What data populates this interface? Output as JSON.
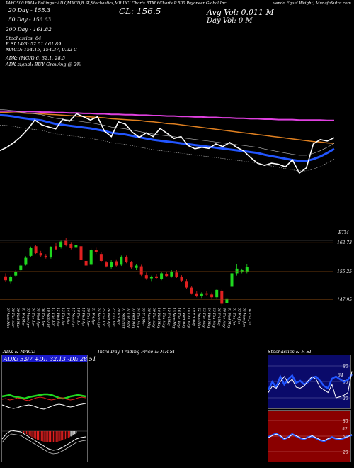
{
  "header": {
    "top_line": "PAYO500 EMAs Bollinger ADX,MACD,R SI,Stochastics,MR UCI Charts BTM 6Charts P 500 Payoneer Global Inc.",
    "top_line_right": "vendo Equal Weight) MunafaSutra.com",
    "ticker_alt": "PAYO",
    "cl_label": "CL: 156.5",
    "avg_vol_label": "Avg Vol: 0.011 M",
    "day_vol_label": "Day Vol: 0  M",
    "ema20": "20   Day  -  155.3",
    "ema50": "50   Day  -  156.63",
    "ema200": "200  Day  -  161.82",
    "stoch": "Stochastics: 64",
    "rsi": "R                 SI 14/3: 52.51 / 61.89",
    "macd": "MACD: 154.15,  154.37,   0.22   C",
    "adx": "ADX:                               (MGR) 6, 32.1, 28.5",
    "adx_signal": "ADX  signal:                                BUY Growing @ 2%"
  },
  "colors": {
    "ema20": "#2255ff",
    "ema50": "#e08020",
    "ema200": "#e040e0",
    "up": "#1fd81f",
    "down": "#e02020",
    "grid": "#8a4a10"
  },
  "price_axis": {
    "labels": [
      "162.73",
      "155.25",
      "147.95"
    ],
    "top_right": "BTM"
  },
  "dates": [
    "27 Mon Mar",
    "28 Tue Mar",
    "29 Wed Mar",
    "31 Fri Mar",
    "03 Mon Apr",
    "04 Tue Apr",
    "05 Wed Apr",
    "06 Thu Apr",
    "10 Mon Apr",
    "11 Tue Apr",
    "12 Wed Apr",
    "13 Thu Apr",
    "14 Fri Apr",
    "17 Mon Apr",
    "18 Tue Apr",
    "19 Wed Apr",
    "20 Thu Apr",
    "21 Fri Apr",
    "24 Mon Apr",
    "25 Tue Apr",
    "26 Wed Apr",
    "27 Thu Apr",
    "28 Fri Apr",
    "01 Mon May",
    "02 Tue May",
    "03 Wed May",
    "04 Thu May",
    "05 Fri May",
    "08 Mon May",
    "09 Tue May",
    "10 Wed May",
    "11 Thu May",
    "12 Fri May",
    "15 Mon May",
    "16 Tue May",
    "17 Wed May",
    "18 Thu May",
    "19 Fri May",
    "22 Mon May",
    "23 Tue May",
    "24 Wed May",
    "25 Thu May",
    "26 Fri May",
    "30 Tue May",
    "31 Wed May",
    "01 Thu Jun",
    "02 Fri Jun",
    "05 Mon Jun",
    "06 Tue Jun"
  ],
  "panels": {
    "adx_title": "ADX  & MACD",
    "adx_values": "ADX: 5.97  +DI: 32.13  -DI: 28.51",
    "intraday_title": "Intra  Day Trading Price  & MR                              SI",
    "stoch_title": "Stochastics & R                 SI",
    "stoch_ticks": [
      "80",
      "50",
      "20"
    ],
    "rsi_ticks": [
      "80",
      "50",
      "20"
    ],
    "stoch_value_label": "64",
    "rsi_value_label": "52"
  },
  "chart_data": {
    "type": "candlestick",
    "ylim": [
      146,
      166
    ],
    "price_labels": [
      162.73,
      155.25,
      147.95
    ],
    "candles": [
      {
        "o": 154.0,
        "h": 154.8,
        "l": 152.6,
        "c": 153.0
      },
      {
        "o": 152.8,
        "h": 154.2,
        "l": 152.2,
        "c": 153.9
      },
      {
        "o": 154.2,
        "h": 155.6,
        "l": 153.8,
        "c": 155.2
      },
      {
        "o": 155.6,
        "h": 157.1,
        "l": 155.2,
        "c": 156.8
      },
      {
        "o": 157.0,
        "h": 159.2,
        "l": 156.8,
        "c": 158.8
      },
      {
        "o": 159.3,
        "h": 161.7,
        "l": 159.0,
        "c": 161.3
      },
      {
        "o": 161.8,
        "h": 162.2,
        "l": 159.8,
        "c": 160.0
      },
      {
        "o": 160.0,
        "h": 160.6,
        "l": 159.0,
        "c": 159.4
      },
      {
        "o": 159.3,
        "h": 159.8,
        "l": 158.6,
        "c": 158.9
      },
      {
        "o": 159.0,
        "h": 161.8,
        "l": 158.6,
        "c": 161.5
      },
      {
        "o": 161.8,
        "h": 162.6,
        "l": 160.8,
        "c": 161.0
      },
      {
        "o": 161.6,
        "h": 163.4,
        "l": 161.2,
        "c": 163.0
      },
      {
        "o": 163.3,
        "h": 163.9,
        "l": 161.8,
        "c": 162.2
      },
      {
        "o": 162.4,
        "h": 162.9,
        "l": 161.0,
        "c": 161.3
      },
      {
        "o": 161.4,
        "h": 162.6,
        "l": 161.0,
        "c": 162.2
      },
      {
        "o": 161.8,
        "h": 162.1,
        "l": 158.0,
        "c": 158.3
      },
      {
        "o": 158.0,
        "h": 158.4,
        "l": 156.3,
        "c": 156.8
      },
      {
        "o": 157.0,
        "h": 161.2,
        "l": 156.8,
        "c": 160.8
      },
      {
        "o": 160.9,
        "h": 161.4,
        "l": 159.8,
        "c": 160.2
      },
      {
        "o": 159.8,
        "h": 160.2,
        "l": 157.6,
        "c": 158.0
      },
      {
        "o": 157.6,
        "h": 158.0,
        "l": 156.3,
        "c": 156.6
      },
      {
        "o": 156.4,
        "h": 158.2,
        "l": 156.0,
        "c": 157.8
      },
      {
        "o": 157.9,
        "h": 158.4,
        "l": 156.4,
        "c": 156.8
      },
      {
        "o": 157.0,
        "h": 159.4,
        "l": 156.7,
        "c": 159.0
      },
      {
        "o": 159.0,
        "h": 159.4,
        "l": 157.4,
        "c": 157.7
      },
      {
        "o": 157.7,
        "h": 158.0,
        "l": 156.0,
        "c": 156.3
      },
      {
        "o": 156.2,
        "h": 157.2,
        "l": 155.6,
        "c": 156.8
      },
      {
        "o": 156.6,
        "h": 157.0,
        "l": 154.1,
        "c": 154.4
      },
      {
        "o": 154.3,
        "h": 155.0,
        "l": 153.1,
        "c": 153.5
      },
      {
        "o": 153.5,
        "h": 154.2,
        "l": 152.8,
        "c": 153.9
      },
      {
        "o": 154.0,
        "h": 154.6,
        "l": 153.3,
        "c": 153.6
      },
      {
        "o": 153.4,
        "h": 155.2,
        "l": 153.0,
        "c": 154.8
      },
      {
        "o": 154.7,
        "h": 155.1,
        "l": 153.8,
        "c": 154.1
      },
      {
        "o": 154.0,
        "h": 155.6,
        "l": 153.7,
        "c": 155.2
      },
      {
        "o": 155.0,
        "h": 155.6,
        "l": 153.6,
        "c": 153.9
      },
      {
        "o": 153.9,
        "h": 154.3,
        "l": 152.6,
        "c": 152.9
      },
      {
        "o": 152.8,
        "h": 153.4,
        "l": 150.8,
        "c": 151.1
      },
      {
        "o": 151.1,
        "h": 151.5,
        "l": 149.3,
        "c": 149.6
      },
      {
        "o": 149.6,
        "h": 150.1,
        "l": 148.6,
        "c": 149.0
      },
      {
        "o": 149.0,
        "h": 149.9,
        "l": 148.4,
        "c": 149.6
      },
      {
        "o": 149.6,
        "h": 150.3,
        "l": 149.0,
        "c": 149.3
      },
      {
        "o": 149.3,
        "h": 149.8,
        "l": 148.3,
        "c": 148.6
      },
      {
        "o": 148.6,
        "h": 150.8,
        "l": 148.3,
        "c": 150.5
      },
      {
        "o": 150.3,
        "h": 150.6,
        "l": 146.4,
        "c": 146.9
      },
      {
        "o": 147.0,
        "h": 148.6,
        "l": 146.7,
        "c": 148.3
      },
      {
        "o": 151.3,
        "h": 155.0,
        "l": 150.5,
        "c": 154.8
      },
      {
        "o": 154.8,
        "h": 157.2,
        "l": 154.2,
        "c": 156.0
      },
      {
        "o": 155.2,
        "h": 156.0,
        "l": 154.8,
        "c": 155.6
      },
      {
        "o": 155.2,
        "h": 157.2,
        "l": 154.8,
        "c": 156.5
      }
    ],
    "series": [
      {
        "name": "20 Day",
        "values": [
          163,
          162.9,
          162.7,
          162.4,
          162.2,
          162.0,
          161.8,
          161.4,
          161.0,
          160.8,
          160.6,
          160.4,
          160.2,
          160.0,
          159.7,
          159.4,
          159.0,
          158.8,
          158.6,
          158.3,
          158.0,
          157.7,
          157.4,
          157.2,
          157.0,
          156.8,
          156.6,
          156.4,
          156.2,
          156.0,
          155.8,
          155.6,
          155.4,
          155.2,
          155.0,
          154.8,
          154.6,
          154.4,
          154.0,
          153.7,
          153.4,
          153.1,
          152.8,
          152.6,
          152.6,
          153.0,
          153.6,
          154.4,
          155.3
        ]
      },
      {
        "name": "50 Day",
        "values": [
          163.6,
          163.6,
          163.5,
          163.5,
          163.4,
          163.4,
          163.3,
          163.2,
          163.1,
          163.0,
          162.9,
          162.8,
          162.7,
          162.6,
          162.5,
          162.4,
          162.2,
          162.1,
          162.0,
          161.9,
          161.8,
          161.6,
          161.5,
          161.3,
          161.1,
          161.0,
          160.8,
          160.6,
          160.4,
          160.2,
          160.0,
          159.8,
          159.6,
          159.4,
          159.2,
          159.0,
          158.8,
          158.6,
          158.4,
          158.2,
          158.0,
          157.8,
          157.6,
          157.4,
          157.2,
          157.0,
          156.9,
          156.7,
          156.6
        ]
      },
      {
        "name": "200 Day",
        "values": [
          163.9,
          163.9,
          163.9,
          163.8,
          163.8,
          163.8,
          163.7,
          163.7,
          163.6,
          163.6,
          163.5,
          163.5,
          163.4,
          163.4,
          163.3,
          163.3,
          163.2,
          163.2,
          163.1,
          163.1,
          163.0,
          163.0,
          162.9,
          162.9,
          162.8,
          162.8,
          162.7,
          162.7,
          162.6,
          162.6,
          162.5,
          162.5,
          162.4,
          162.4,
          162.3,
          162.3,
          162.2,
          162.2,
          162.1,
          162.1,
          162.0,
          162.0,
          162.0,
          161.9,
          161.9,
          161.9,
          161.9,
          161.8,
          161.8
        ]
      }
    ]
  }
}
